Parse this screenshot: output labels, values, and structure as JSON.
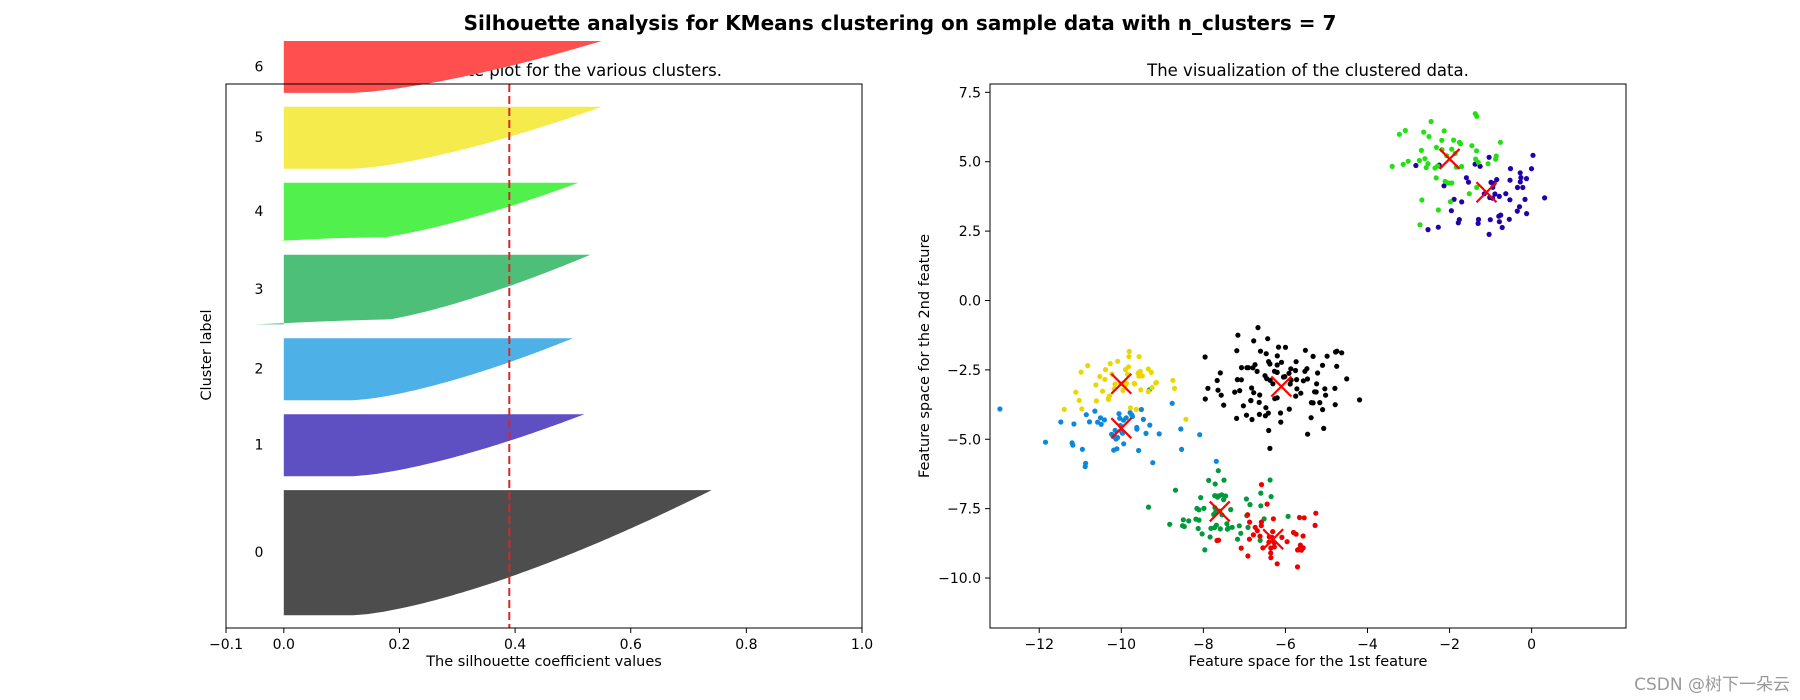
{
  "figure": {
    "suptitle": "Silhouette analysis for KMeans clustering on sample data with n_clusters = 7",
    "watermark": "CSDN @树下一朵云",
    "avg_line_color": "#d62728",
    "center_marker_color": "#ff0000"
  },
  "chart_data": [
    {
      "type": "area",
      "title": "The silhouette plot for the various clusters.",
      "xlabel": "The silhouette coefficient values",
      "ylabel": "Cluster label",
      "xlim": [
        -0.1,
        1.0
      ],
      "ylim": [
        0,
        430
      ],
      "xticks": [
        "−0.1",
        "0.0",
        "0.2",
        "0.4",
        "0.6",
        "0.8",
        "1.0"
      ],
      "xtick_values": [
        -0.1,
        0.0,
        0.2,
        0.4,
        0.6,
        0.8,
        1.0
      ],
      "average_silhouette_score": 0.39,
      "average_line_style": "dashed",
      "grid": false,
      "clusters": [
        {
          "label": "0",
          "size": 100,
          "color": "#4d4d4d",
          "min": 0.0,
          "max": 0.74
        },
        {
          "label": "1",
          "size": 50,
          "color": "#5e4fc2",
          "min": 0.0,
          "max": 0.52
        },
        {
          "label": "2",
          "size": 50,
          "color": "#4db0e6",
          "min": 0.0,
          "max": 0.5
        },
        {
          "label": "3",
          "size": 56,
          "color": "#4dbf79",
          "min": -0.05,
          "max": 0.53
        },
        {
          "label": "4",
          "size": 47,
          "color": "#52f04d",
          "min": -0.01,
          "max": 0.51
        },
        {
          "label": "5",
          "size": 50,
          "color": "#f5eb4d",
          "min": 0.0,
          "max": 0.55
        },
        {
          "label": "6",
          "size": 42,
          "color": "#ff4f4f",
          "min": 0.0,
          "max": 0.55
        }
      ]
    },
    {
      "type": "scatter",
      "title": "The visualization of the clustered data.",
      "xlabel": "Feature space for the 1st feature",
      "ylabel": "Feature space for the 2nd feature",
      "xlim": [
        -13.2,
        2.3
      ],
      "ylim": [
        -11.8,
        7.8
      ],
      "xticks": [
        "−12",
        "−10",
        "−8",
        "−6",
        "−4",
        "−2",
        "0"
      ],
      "xtick_values": [
        -12,
        -10,
        -8,
        -6,
        -4,
        -2,
        0
      ],
      "yticks": [
        "7.5",
        "5.0",
        "2.5",
        "0.0",
        "−2.5",
        "−5.0",
        "−7.5",
        "−10.0"
      ],
      "ytick_values": [
        7.5,
        5.0,
        2.5,
        0.0,
        -2.5,
        -5.0,
        -7.5,
        -10.0
      ],
      "grid": false,
      "clusters": [
        {
          "label": "0",
          "color": "#000000",
          "center": [
            -6.1,
            -3.1
          ],
          "spread": [
            0.9,
            0.85
          ],
          "n": 100
        },
        {
          "label": "1",
          "color": "#2200aa",
          "center": [
            -1.1,
            3.9
          ],
          "spread": [
            0.75,
            0.9
          ],
          "n": 50
        },
        {
          "label": "2",
          "color": "#0a88dd",
          "center": [
            -10.0,
            -4.6
          ],
          "spread": [
            0.85,
            0.6
          ],
          "n": 50
        },
        {
          "label": "3",
          "color": "#009a3c",
          "center": [
            -7.6,
            -7.6
          ],
          "spread": [
            0.6,
            0.65
          ],
          "n": 56
        },
        {
          "label": "4",
          "color": "#22e011",
          "center": [
            -2.0,
            5.1
          ],
          "spread": [
            0.7,
            0.7
          ],
          "n": 47
        },
        {
          "label": "5",
          "color": "#e8d800",
          "center": [
            -10.0,
            -3.0
          ],
          "spread": [
            0.7,
            0.5
          ],
          "n": 50
        },
        {
          "label": "6",
          "color": "#ee0000",
          "center": [
            -6.3,
            -8.6
          ],
          "spread": [
            0.65,
            0.6
          ],
          "n": 42
        }
      ]
    }
  ]
}
